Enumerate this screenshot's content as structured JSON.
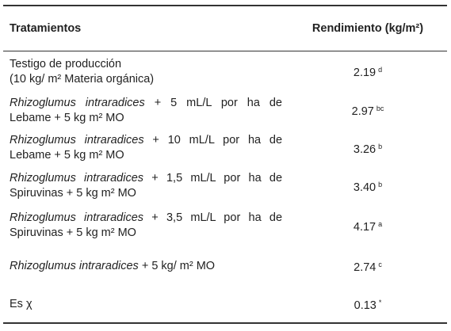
{
  "header": {
    "treatment": "Tratamientos",
    "yield": "Rendimiento (kg/m²)"
  },
  "table": {
    "rows": [
      {
        "lines": [
          "Testigo de producción",
          "(10 kg/ m² Materia orgánica)"
        ],
        "value": "2.19",
        "sig": "d"
      },
      {
        "italic": "Rhizoglumus intraradices",
        "text": "+ 5 mL/L por ha de Lebame + 5 kg m² MO",
        "value": "2.97",
        "sig": "bc"
      },
      {
        "italic": "Rhizoglumus intraradices",
        "text": "+ 10 mL/L por ha de Lebame + 5 kg m² MO",
        "value": "3.26",
        "sig": "b"
      },
      {
        "italic": "Rhizoglumus intraradices",
        "text": "+ 1,5 mL/L por ha de Spiruvinas + 5 kg m² MO",
        "value": "3.40",
        "sig": "b"
      },
      {
        "italic": "Rhizoglumus intraradices",
        "text": "+ 3,5 mL/L por ha de Spiruvinas + 5 kg m² MO",
        "value": "4.17",
        "sig": "a"
      },
      {
        "italic": "Rhizoglumus intraradices",
        "text": "+ 5 kg/ m² MO",
        "value": "2.74",
        "sig": "c"
      },
      {
        "lines": [
          "Es χ"
        ],
        "value": "0.13",
        "sig": "*"
      }
    ]
  }
}
